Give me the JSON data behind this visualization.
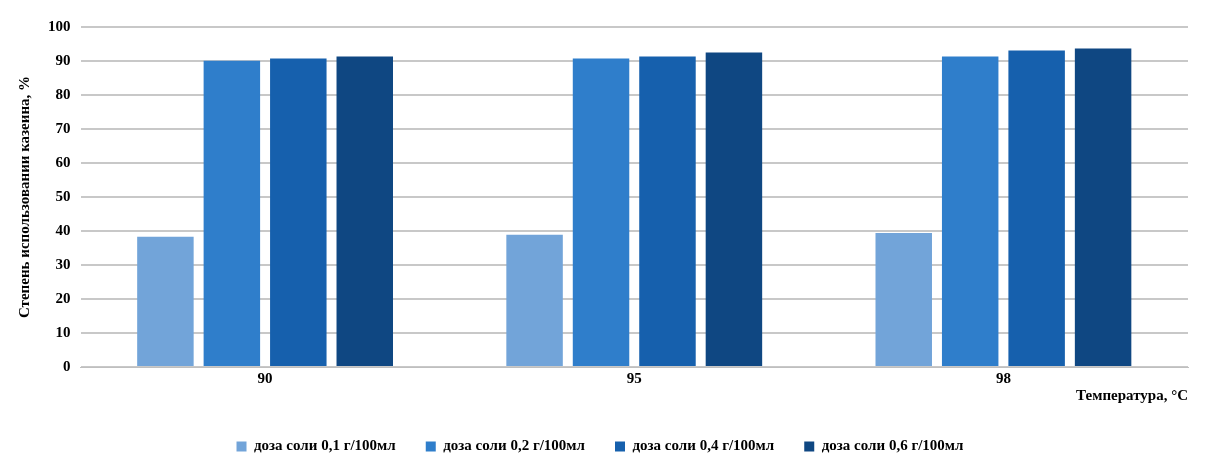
{
  "chart_data": {
    "type": "bar",
    "xlabel": "Температура, °C",
    "ylabel": "Степень использовании казеина, %",
    "categories": [
      "90",
      "95",
      "98"
    ],
    "series": [
      {
        "name": "доза соли 0,1 г/100мл",
        "color": "#72a4d9",
        "values": [
          38.3,
          38.9,
          39.4
        ]
      },
      {
        "name": "доза соли 0,2 г/100мл",
        "color": "#2f7ecb",
        "values": [
          90.1,
          90.7,
          91.3
        ]
      },
      {
        "name": "доза соли 0,4 г/100мл",
        "color": "#1660ad",
        "values": [
          90.7,
          91.3,
          93.1
        ]
      },
      {
        "name": "доза соли 0,6 г/100мл",
        "color": "#0f4782",
        "values": [
          91.3,
          92.5,
          93.7
        ]
      }
    ],
    "ylim": [
      0,
      100
    ],
    "yticks": [
      0,
      10,
      20,
      30,
      40,
      50,
      60,
      70,
      80,
      90,
      100
    ],
    "grid": "y",
    "legend": "bottom"
  }
}
